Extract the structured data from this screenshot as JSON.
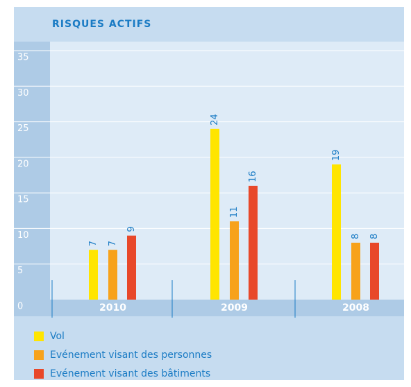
{
  "chart_data": {
    "type": "bar",
    "title": "RISQUES ACTIFS",
    "categories": [
      "2010",
      "2009",
      "2008"
    ],
    "series": [
      {
        "name": "Vol",
        "color": "#ffe500",
        "values": [
          7,
          24,
          19
        ]
      },
      {
        "name": "Evénement visant des personnes",
        "color": "#f7a21b",
        "values": [
          7,
          11,
          8
        ]
      },
      {
        "name": "Evénement visant des bâtiments",
        "color": "#e8482a",
        "values": [
          9,
          16,
          8
        ]
      }
    ],
    "ylim": [
      0,
      35
    ],
    "yticks": [
      0,
      5,
      10,
      15,
      20,
      25,
      30,
      35
    ],
    "grid": true
  }
}
